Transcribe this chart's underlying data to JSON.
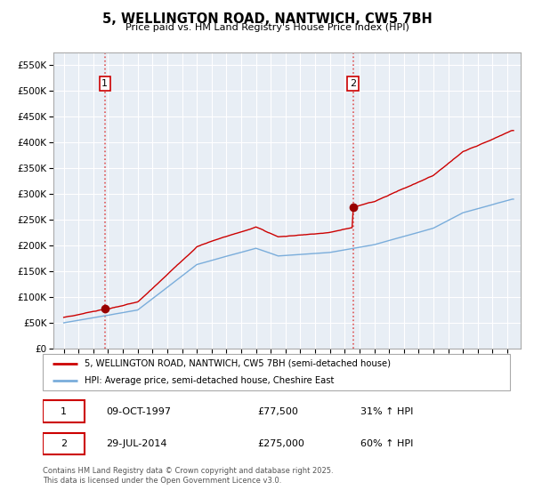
{
  "title": "5, WELLINGTON ROAD, NANTWICH, CW5 7BH",
  "subtitle": "Price paid vs. HM Land Registry's House Price Index (HPI)",
  "legend_line1": "5, WELLINGTON ROAD, NANTWICH, CW5 7BH (semi-detached house)",
  "legend_line2": "HPI: Average price, semi-detached house, Cheshire East",
  "transaction1_date": "09-OCT-1997",
  "transaction1_price": "£77,500",
  "transaction1_hpi": "31% ↑ HPI",
  "transaction2_date": "29-JUL-2014",
  "transaction2_price": "£275,000",
  "transaction2_hpi": "60% ↑ HPI",
  "footer": "Contains HM Land Registry data © Crown copyright and database right 2025.\nThis data is licensed under the Open Government Licence v3.0.",
  "red_line_color": "#cc0000",
  "blue_line_color": "#7aaddb",
  "dashed_vline_color": "#dd4444",
  "grid_color": "#cccccc",
  "background_color": "#ffffff",
  "transaction1_year": 1997.78,
  "transaction2_year": 2014.57,
  "transaction1_price_val": 77500,
  "transaction2_price_val": 275000,
  "ylim_max": 575000,
  "ylim_min": 0,
  "xlim_min": 1994.3,
  "xlim_max": 2025.9
}
